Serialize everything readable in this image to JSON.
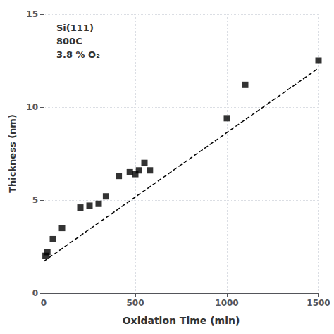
{
  "chart_data": {
    "type": "scatter",
    "xlabel": "Oxidation Time (min)",
    "ylabel": "Thickness (nm)",
    "annotations": [
      "Si(111)",
      "800C",
      "3.8 % O₂"
    ],
    "series": [
      {
        "type": "scatter",
        "marker": "square",
        "color": "#000000",
        "x": [
          10,
          20,
          50,
          100,
          200,
          250,
          300,
          340,
          410,
          470,
          500,
          520,
          550,
          580,
          1000,
          1100,
          1500
        ],
        "values": [
          2.0,
          2.2,
          2.9,
          3.5,
          4.6,
          4.7,
          4.8,
          5.2,
          6.3,
          6.5,
          6.4,
          6.6,
          7.0,
          6.6,
          9.4,
          11.2,
          12.5
        ]
      },
      {
        "type": "line",
        "line_style": "dashed",
        "color": "#000000",
        "x": [
          0,
          1500
        ],
        "values": [
          1.7,
          12.095
        ]
      }
    ],
    "xlim": [
      0,
      1500
    ],
    "ylim": [
      0,
      15
    ],
    "xticks": [
      0,
      500,
      1000,
      1500
    ],
    "yticks": [
      0,
      5,
      10,
      15
    ],
    "grid": true
  }
}
